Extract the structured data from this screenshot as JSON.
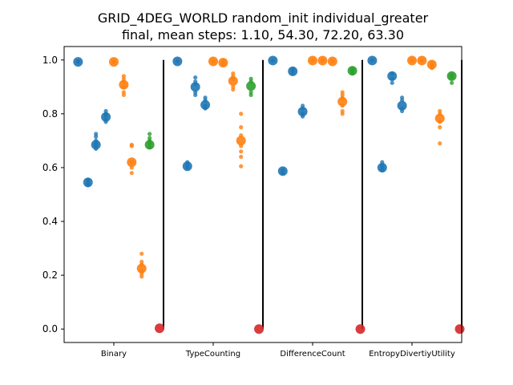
{
  "chart_data": {
    "type": "scatter",
    "title_line1": "GRID_4DEG_WORLD random_init individual_greater",
    "title_line2": "final, mean steps: 1.10, 54.30, 72.20, 63.30",
    "categories": [
      "Binary",
      "TypeCounting",
      "DifferenceCount",
      "EntropyDivertiyUtility"
    ],
    "ylim": [
      -0.05,
      1.05
    ],
    "xlim": [
      -0.5,
      3.5
    ],
    "yticks": [
      0.0,
      0.2,
      0.4,
      0.6,
      0.8,
      1.0
    ],
    "ytick_labels": [
      "0.0",
      "0.2",
      "0.4",
      "0.6",
      "0.8",
      "1.0"
    ],
    "colors": {
      "blue": "#1f77b4",
      "orange": "#ff7f0e",
      "green": "#2ca02c",
      "red": "#d62728"
    },
    "separators_x": [
      0.5,
      1.5,
      2.5,
      3.5
    ],
    "series": [
      {
        "x": -0.36,
        "color": "blue",
        "mean": 0.993,
        "points": [
          0.993,
          0.995
        ]
      },
      {
        "x": -0.26,
        "color": "blue",
        "mean": 0.545,
        "points": [
          0.535,
          0.54,
          0.55,
          0.555
        ]
      },
      {
        "x": -0.18,
        "color": "blue",
        "mean": 0.685,
        "points": [
          0.67,
          0.68,
          0.69,
          0.7,
          0.715,
          0.725
        ]
      },
      {
        "x": -0.08,
        "color": "blue",
        "mean": 0.788,
        "points": [
          0.77,
          0.78,
          0.795,
          0.8,
          0.81
        ]
      },
      {
        "x": 0.0,
        "color": "orange",
        "mean": 0.993,
        "points": [
          0.992,
          0.995
        ]
      },
      {
        "x": 0.1,
        "color": "orange",
        "mean": 0.908,
        "points": [
          0.87,
          0.88,
          0.9,
          0.92,
          0.93,
          0.94
        ]
      },
      {
        "x": 0.18,
        "color": "orange",
        "mean": 0.62,
        "points": [
          0.58,
          0.6,
          0.62,
          0.68,
          0.685
        ]
      },
      {
        "x": 0.28,
        "color": "orange",
        "mean": 0.225,
        "points": [
          0.195,
          0.205,
          0.215,
          0.24,
          0.25,
          0.28
        ]
      },
      {
        "x": 0.36,
        "color": "green",
        "mean": 0.685,
        "points": [
          0.675,
          0.69,
          0.7,
          0.71,
          0.725
        ]
      },
      {
        "x": 0.46,
        "color": "red",
        "mean": 0.003,
        "points": []
      },
      {
        "x": 0.64,
        "color": "blue",
        "mean": 0.995,
        "points": [
          0.995
        ]
      },
      {
        "x": 0.74,
        "color": "blue",
        "mean": 0.605,
        "points": [
          0.6,
          0.61,
          0.62
        ]
      },
      {
        "x": 0.82,
        "color": "blue",
        "mean": 0.9,
        "points": [
          0.87,
          0.88,
          0.91,
          0.92,
          0.935
        ]
      },
      {
        "x": 0.92,
        "color": "blue",
        "mean": 0.833,
        "points": [
          0.82,
          0.83,
          0.85,
          0.86
        ]
      },
      {
        "x": 1.0,
        "color": "orange",
        "mean": 0.995,
        "points": [
          0.995
        ]
      },
      {
        "x": 1.1,
        "color": "orange",
        "mean": 0.99,
        "points": [
          0.985,
          0.995
        ]
      },
      {
        "x": 1.2,
        "color": "orange",
        "mean": 0.922,
        "points": [
          0.89,
          0.9,
          0.93,
          0.94,
          0.95
        ]
      },
      {
        "x": 1.28,
        "color": "orange",
        "mean": 0.7,
        "points": [
          0.605,
          0.64,
          0.66,
          0.68,
          0.72,
          0.75,
          0.8
        ]
      },
      {
        "x": 1.38,
        "color": "green",
        "mean": 0.903,
        "points": [
          0.87,
          0.88,
          0.92,
          0.93
        ]
      },
      {
        "x": 1.46,
        "color": "red",
        "mean": 0.0,
        "points": []
      },
      {
        "x": 1.6,
        "color": "blue",
        "mean": 0.998,
        "points": [
          0.998
        ]
      },
      {
        "x": 1.7,
        "color": "blue",
        "mean": 0.587,
        "points": [
          0.58,
          0.59
        ]
      },
      {
        "x": 1.8,
        "color": "blue",
        "mean": 0.958,
        "points": [
          0.95,
          0.96,
          0.965
        ]
      },
      {
        "x": 1.9,
        "color": "blue",
        "mean": 0.808,
        "points": [
          0.79,
          0.8,
          0.82,
          0.83
        ]
      },
      {
        "x": 2.0,
        "color": "orange",
        "mean": 0.998,
        "points": [
          0.998
        ]
      },
      {
        "x": 2.1,
        "color": "orange",
        "mean": 0.998,
        "points": [
          0.998
        ]
      },
      {
        "x": 2.2,
        "color": "orange",
        "mean": 0.995,
        "points": [
          0.995
        ]
      },
      {
        "x": 2.3,
        "color": "orange",
        "mean": 0.845,
        "points": [
          0.8,
          0.81,
          0.83,
          0.86,
          0.87,
          0.88
        ]
      },
      {
        "x": 2.4,
        "color": "green",
        "mean": 0.96,
        "points": [
          0.95,
          0.96,
          0.965
        ]
      },
      {
        "x": 2.48,
        "color": "red",
        "mean": 0.0,
        "points": []
      },
      {
        "x": 2.6,
        "color": "blue",
        "mean": 0.998,
        "points": [
          0.998
        ]
      },
      {
        "x": 2.7,
        "color": "blue",
        "mean": 0.6,
        "points": [
          0.59,
          0.6,
          0.61,
          0.62
        ]
      },
      {
        "x": 2.8,
        "color": "blue",
        "mean": 0.94,
        "points": [
          0.915,
          0.93,
          0.95
        ]
      },
      {
        "x": 2.9,
        "color": "blue",
        "mean": 0.83,
        "points": [
          0.81,
          0.82,
          0.85,
          0.86
        ]
      },
      {
        "x": 3.0,
        "color": "orange",
        "mean": 0.998,
        "points": [
          0.998
        ]
      },
      {
        "x": 3.1,
        "color": "orange",
        "mean": 0.998,
        "points": [
          0.998
        ]
      },
      {
        "x": 3.2,
        "color": "orange",
        "mean": 0.983,
        "points": [
          0.97,
          0.98,
          0.99
        ]
      },
      {
        "x": 3.28,
        "color": "orange",
        "mean": 0.783,
        "points": [
          0.69,
          0.75,
          0.77,
          0.8,
          0.81
        ]
      },
      {
        "x": 3.4,
        "color": "green",
        "mean": 0.94,
        "points": [
          0.915,
          0.935,
          0.945
        ]
      },
      {
        "x": 3.48,
        "color": "red",
        "mean": 0.0,
        "points": []
      }
    ]
  }
}
